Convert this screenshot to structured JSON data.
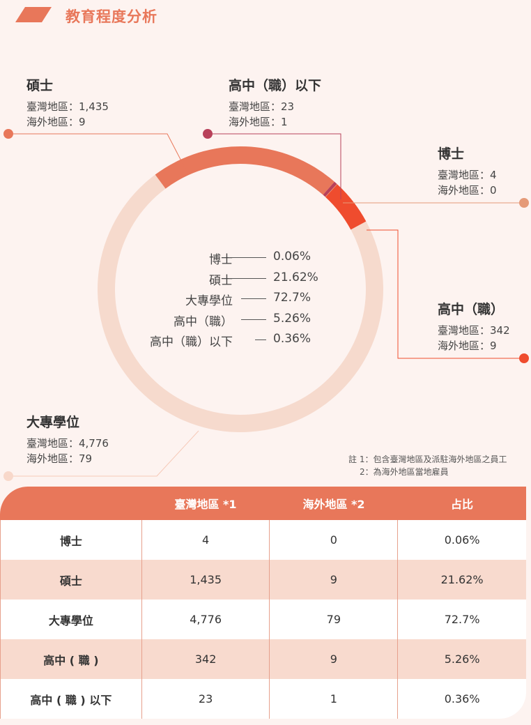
{
  "page": {
    "title": "教育程度分析"
  },
  "chart_data": {
    "type": "pie",
    "donut": true,
    "categories": [
      "博士",
      "碩士",
      "大專學位",
      "高中（職）",
      "高中（職）以下"
    ],
    "values": [
      0.06,
      21.62,
      72.7,
      5.26,
      0.36
    ],
    "value_labels": [
      "0.06%",
      "21.62%",
      "72.7%",
      "5.26%",
      "0.36%"
    ],
    "colors": [
      "#e59a78",
      "#e8775a",
      "#f6dacd",
      "#ef4c2e",
      "#b8415a"
    ]
  },
  "callouts": [
    {
      "key": "phd",
      "title": "博士",
      "lines": [
        "臺灣地區：4",
        "海外地區：0"
      ],
      "color": "#e59a78"
    },
    {
      "key": "master",
      "title": "碩士",
      "lines": [
        "臺灣地區：1,435",
        "海外地區：9"
      ],
      "color": "#e8775a"
    },
    {
      "key": "bachelor",
      "title": "大專學位",
      "lines": [
        "臺灣地區：4,776",
        "海外地區：79"
      ],
      "color": "#f6dacd"
    },
    {
      "key": "highschool",
      "title": "高中（職）",
      "lines": [
        "臺灣地區：342",
        "海外地區：9"
      ],
      "color": "#ef4c2e"
    },
    {
      "key": "below",
      "title": "高中（職）以下",
      "lines": [
        "臺灣地區：23",
        "海外地區：1"
      ],
      "color": "#b8415a"
    }
  ],
  "center_list": [
    {
      "name": "博士",
      "value": "0.06%"
    },
    {
      "name": "碩士",
      "value": "21.62%"
    },
    {
      "name": "大專學位",
      "value": "72.7%"
    },
    {
      "name": "高中（職）",
      "value": "5.26%"
    },
    {
      "name": "高中（職）以下",
      "value": "0.36%"
    }
  ],
  "notes": [
    "註 1：包含臺灣地區及派駐海外地區之員工",
    "2：為海外地區當地雇員"
  ],
  "table": {
    "headers": [
      "",
      "臺灣地區 *1",
      "海外地區 *2",
      "占比"
    ],
    "rows": [
      [
        "博士",
        "4",
        "0",
        "0.06%"
      ],
      [
        "碩士",
        "1,435",
        "9",
        "21.62%"
      ],
      [
        "大專學位",
        "4,776",
        "79",
        "72.7%"
      ],
      [
        "高中 ( 職 )",
        "342",
        "9",
        "5.26%"
      ],
      [
        "高中 ( 職 ) 以下",
        "23",
        "1",
        "0.36%"
      ]
    ]
  }
}
